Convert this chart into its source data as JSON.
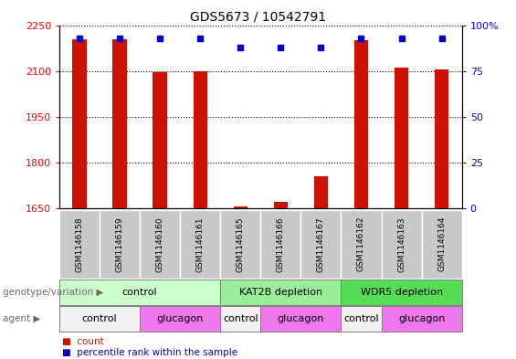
{
  "title": "GDS5673 / 10542791",
  "samples": [
    "GSM1146158",
    "GSM1146159",
    "GSM1146160",
    "GSM1146161",
    "GSM1146165",
    "GSM1146166",
    "GSM1146167",
    "GSM1146162",
    "GSM1146163",
    "GSM1146164"
  ],
  "counts": [
    2205,
    2205,
    2095,
    2100,
    1656,
    1670,
    1755,
    2200,
    2110,
    2105
  ],
  "percentiles": [
    93,
    93,
    93,
    93,
    88,
    88,
    88,
    93,
    93,
    93
  ],
  "ylim_left": [
    1650,
    2250
  ],
  "ylim_right": [
    0,
    100
  ],
  "yticks_left": [
    1650,
    1800,
    1950,
    2100,
    2250
  ],
  "yticks_right": [
    0,
    25,
    50,
    75,
    100
  ],
  "bar_color": "#cc1100",
  "dot_color": "#0000cc",
  "bar_width": 0.35,
  "groups": [
    {
      "label": "control",
      "start": 0,
      "end": 4,
      "color": "#ccffcc"
    },
    {
      "label": "KAT2B depletion",
      "start": 4,
      "end": 7,
      "color": "#99ee99"
    },
    {
      "label": "WDR5 depletion",
      "start": 7,
      "end": 10,
      "color": "#55dd55"
    }
  ],
  "agents": [
    {
      "label": "control",
      "start": 0,
      "end": 2,
      "color": "#f0f0f0"
    },
    {
      "label": "glucagon",
      "start": 2,
      "end": 4,
      "color": "#ee77ee"
    },
    {
      "label": "control",
      "start": 4,
      "end": 5,
      "color": "#f0f0f0"
    },
    {
      "label": "glucagon",
      "start": 5,
      "end": 7,
      "color": "#ee77ee"
    },
    {
      "label": "control",
      "start": 7,
      "end": 8,
      "color": "#f0f0f0"
    },
    {
      "label": "glucagon",
      "start": 8,
      "end": 10,
      "color": "#ee77ee"
    }
  ],
  "genotype_label": "genotype/variation",
  "agent_label": "agent",
  "legend_count_label": "count",
  "legend_pct_label": "percentile rank within the sample"
}
